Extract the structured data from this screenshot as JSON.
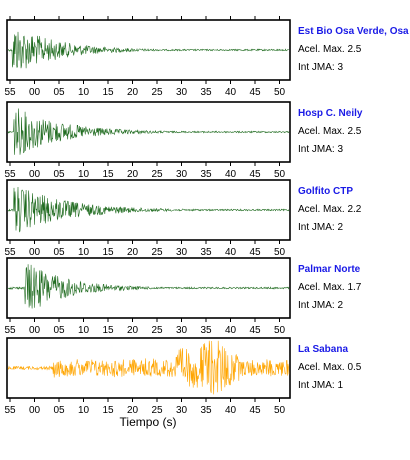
{
  "chart_data": {
    "type": "line",
    "xlabel": "Tiempo (s)",
    "x_ticks": [
      "55",
      "00",
      "05",
      "10",
      "15",
      "20",
      "25",
      "30",
      "35",
      "40",
      "45",
      "50"
    ],
    "acel_label": "Acel. Max.",
    "jma_label": "Int JMA:",
    "stations": [
      {
        "name": "Est Bio Osa Verde, Osa",
        "acel_max": "2.5",
        "int_jma": "3",
        "color": "#1f6b1f",
        "ticks_below": true
      },
      {
        "name": "Hosp C. Neily",
        "acel_max": "2.5",
        "int_jma": "3",
        "color": "#1f6b1f",
        "ticks_below": true
      },
      {
        "name": "Golfito CTP",
        "acel_max": "2.2",
        "int_jma": "2",
        "color": "#1f6b1f",
        "ticks_below": true
      },
      {
        "name": "Palmar Norte",
        "acel_max": "1.7",
        "int_jma": "2",
        "color": "#1f6b1f",
        "ticks_below": true
      },
      {
        "name": "La Sabana",
        "acel_max": "0.5",
        "int_jma": "1",
        "color": "#ffa500",
        "ticks_below": true
      }
    ]
  }
}
